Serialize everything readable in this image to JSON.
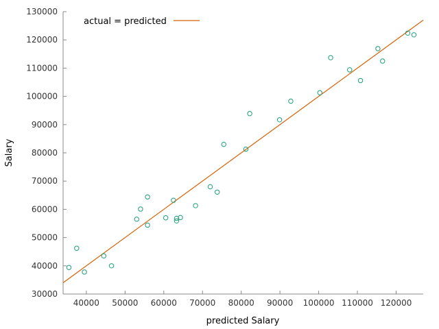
{
  "chart_data": {
    "type": "scatter",
    "xlabel": "predicted Salary",
    "ylabel": "Salary",
    "xlim": [
      34000,
      127000
    ],
    "ylim": [
      30000,
      130000
    ],
    "xticks": [
      40000,
      50000,
      60000,
      70000,
      80000,
      90000,
      100000,
      110000,
      120000
    ],
    "yticks": [
      30000,
      40000,
      50000,
      60000,
      70000,
      80000,
      90000,
      100000,
      110000,
      120000,
      130000
    ],
    "grid": false,
    "legend_position": "top-left",
    "colors": {
      "points": "#1a9e77",
      "line": "#d95f02",
      "axis": "#888888"
    },
    "series": [
      {
        "kind": "points",
        "points": [
          [
            35500,
            39400
          ],
          [
            37500,
            46200
          ],
          [
            39500,
            37800
          ],
          [
            44500,
            43500
          ],
          [
            46500,
            40000
          ],
          [
            53000,
            56500
          ],
          [
            54000,
            60100
          ],
          [
            55800,
            54400
          ],
          [
            55800,
            64400
          ],
          [
            60500,
            57000
          ],
          [
            62500,
            63200
          ],
          [
            63300,
            56800
          ],
          [
            63300,
            55900
          ],
          [
            64300,
            57100
          ],
          [
            68200,
            61300
          ],
          [
            72000,
            68000
          ],
          [
            73800,
            66100
          ],
          [
            75500,
            83000
          ],
          [
            81200,
            81300
          ],
          [
            82200,
            93900
          ],
          [
            89900,
            91700
          ],
          [
            92800,
            98300
          ],
          [
            100300,
            101300
          ],
          [
            103100,
            113700
          ],
          [
            108000,
            109400
          ],
          [
            110800,
            105600
          ],
          [
            115300,
            116900
          ],
          [
            116500,
            112500
          ],
          [
            123000,
            122400
          ],
          [
            124600,
            121800
          ]
        ]
      },
      {
        "kind": "line",
        "name": "actual = predicted",
        "points": [
          [
            34000,
            34000
          ],
          [
            127000,
            127000
          ]
        ]
      }
    ]
  }
}
